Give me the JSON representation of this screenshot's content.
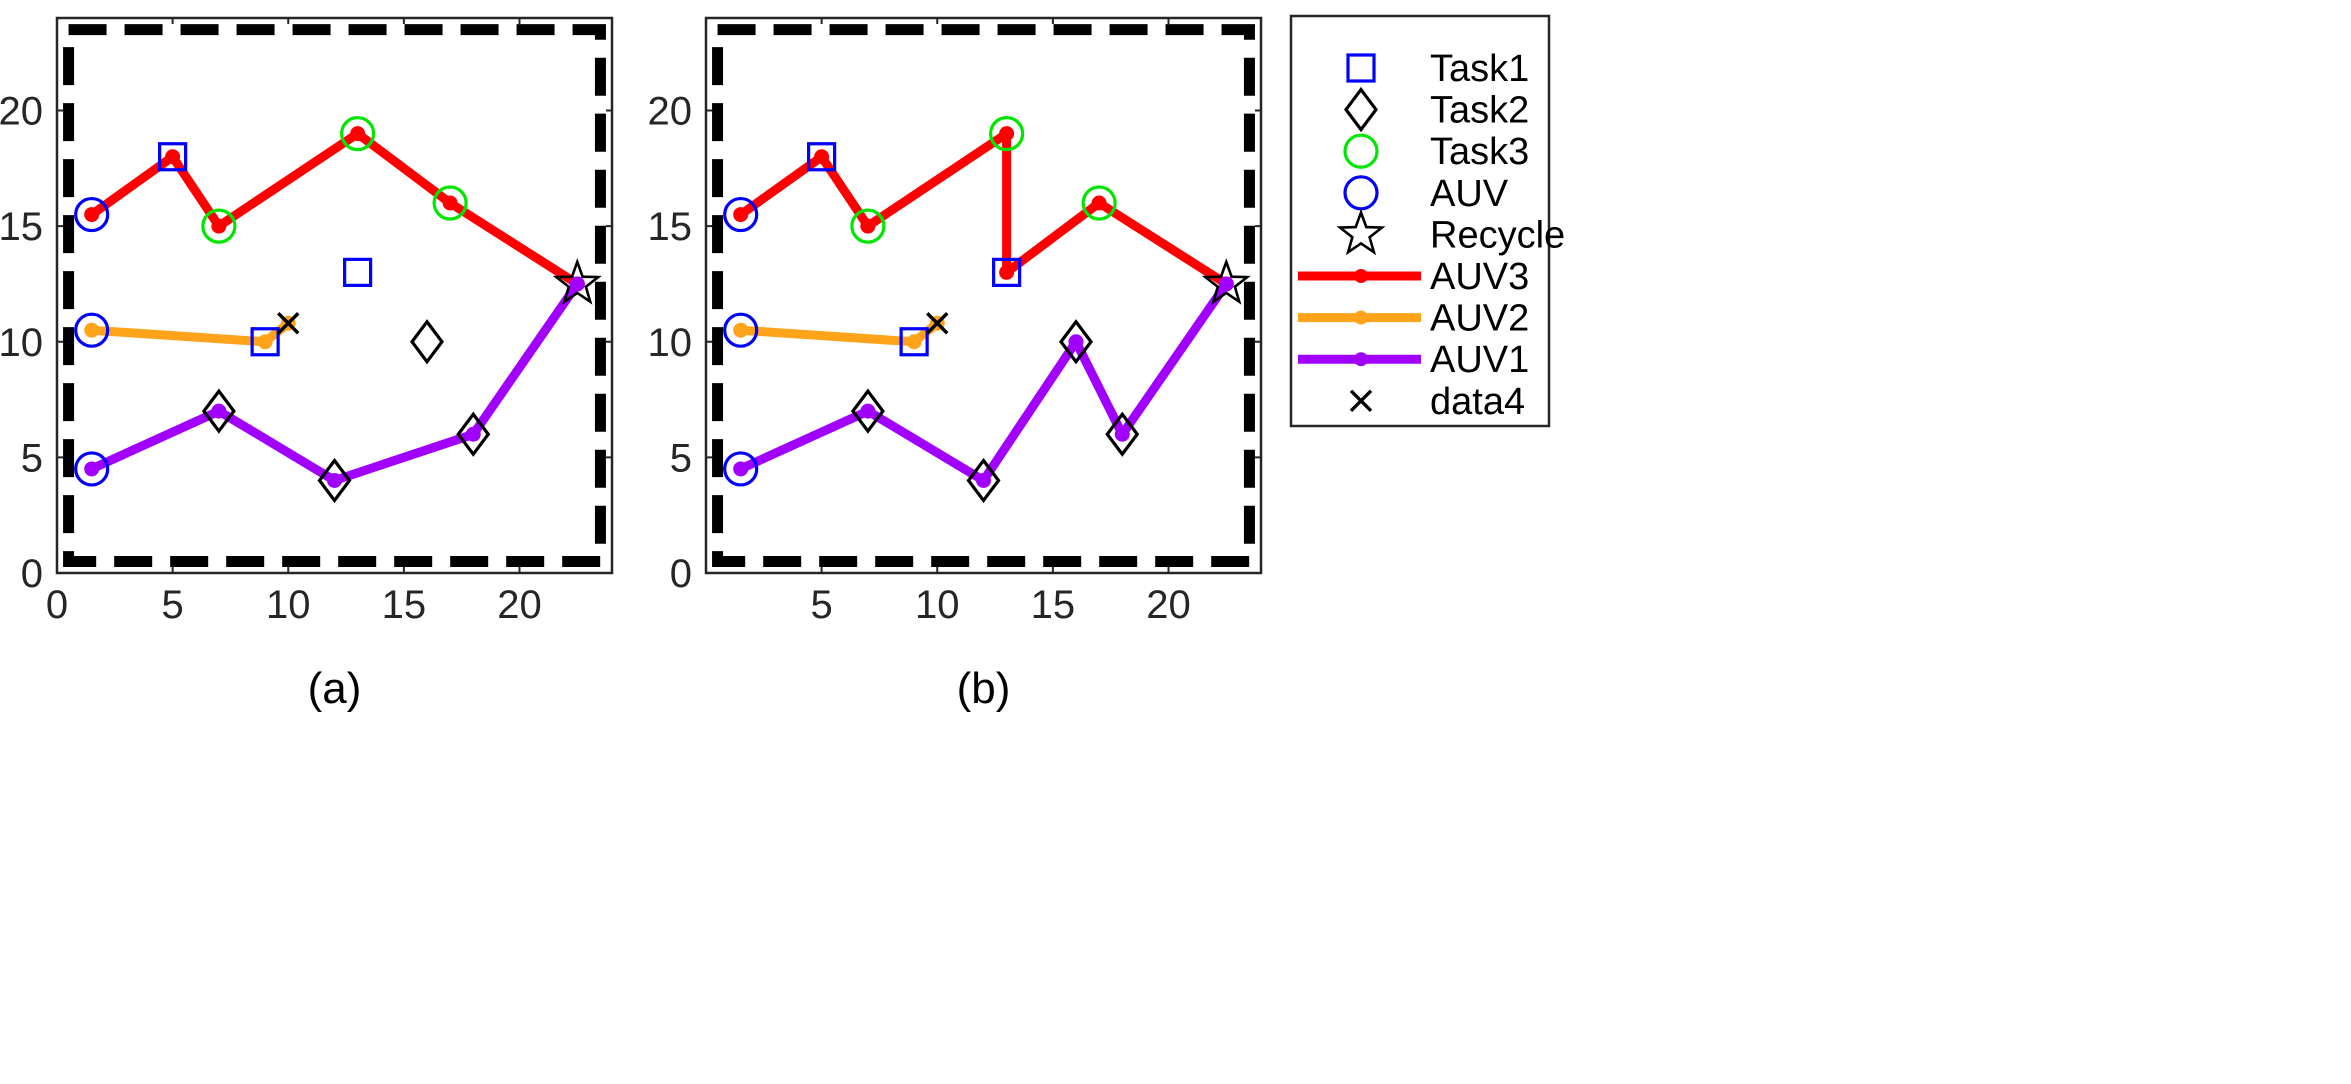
{
  "chart_data": [
    {
      "type": "line",
      "caption": "(a)",
      "xlim": [
        0,
        24
      ],
      "ylim": [
        0,
        24
      ],
      "xticks": [
        "0",
        "5",
        "10",
        "15",
        "20"
      ],
      "yticks": [
        "0",
        "5",
        "10",
        "15",
        "20"
      ],
      "boundary": {
        "x": [
          0.5,
          23.5
        ],
        "y": [
          0.5,
          23.5
        ],
        "style": "dashed"
      },
      "markers": {
        "Task1": [
          {
            "x": 5,
            "y": 18
          },
          {
            "x": 13,
            "y": 13
          },
          {
            "x": 9,
            "y": 10
          }
        ],
        "Task2": [
          {
            "x": 7,
            "y": 7
          },
          {
            "x": 12,
            "y": 4
          },
          {
            "x": 18,
            "y": 6
          },
          {
            "x": 16,
            "y": 10
          }
        ],
        "Task3": [
          {
            "x": 7,
            "y": 15
          },
          {
            "x": 13,
            "y": 19
          },
          {
            "x": 17,
            "y": 16
          }
        ],
        "AUV": [
          {
            "x": 1.5,
            "y": 15.5
          },
          {
            "x": 1.5,
            "y": 10.5
          },
          {
            "x": 1.5,
            "y": 4.5
          }
        ],
        "Recycle": [
          {
            "x": 22.5,
            "y": 12.5
          }
        ],
        "data4": [
          {
            "x": 10,
            "y": 10.8
          }
        ]
      },
      "series": [
        {
          "name": "AUV3",
          "color": "#ff0000",
          "x": [
            1.5,
            5,
            7,
            13,
            17,
            22.5
          ],
          "y": [
            15.5,
            18,
            15,
            19,
            16,
            12.5
          ]
        },
        {
          "name": "AUV2",
          "color": "#ffa31a",
          "x": [
            1.5,
            9,
            10
          ],
          "y": [
            10.5,
            10,
            10.8
          ]
        },
        {
          "name": "AUV1",
          "color": "#a100ff",
          "x": [
            1.5,
            7,
            12,
            18,
            22.5
          ],
          "y": [
            4.5,
            7,
            4,
            6,
            12.5
          ]
        }
      ]
    },
    {
      "type": "line",
      "caption": "(b)",
      "xlim": [
        0,
        24
      ],
      "ylim": [
        0,
        24
      ],
      "xticks": [
        "5",
        "10",
        "15",
        "20"
      ],
      "yticks": [
        "0",
        "5",
        "10",
        "15",
        "20"
      ],
      "boundary": {
        "x": [
          0.5,
          23.5
        ],
        "y": [
          0.5,
          23.5
        ],
        "style": "dashed"
      },
      "markers": {
        "Task1": [
          {
            "x": 5,
            "y": 18
          },
          {
            "x": 13,
            "y": 13
          },
          {
            "x": 9,
            "y": 10
          }
        ],
        "Task2": [
          {
            "x": 7,
            "y": 7
          },
          {
            "x": 12,
            "y": 4
          },
          {
            "x": 18,
            "y": 6
          },
          {
            "x": 16,
            "y": 10
          }
        ],
        "Task3": [
          {
            "x": 7,
            "y": 15
          },
          {
            "x": 13,
            "y": 19
          },
          {
            "x": 17,
            "y": 16
          }
        ],
        "AUV": [
          {
            "x": 1.5,
            "y": 15.5
          },
          {
            "x": 1.5,
            "y": 10.5
          },
          {
            "x": 1.5,
            "y": 4.5
          }
        ],
        "Recycle": [
          {
            "x": 22.5,
            "y": 12.5
          }
        ],
        "data4": [
          {
            "x": 10,
            "y": 10.8
          }
        ]
      },
      "series": [
        {
          "name": "AUV3",
          "color": "#ff0000",
          "x": [
            1.5,
            5,
            7,
            13,
            13,
            17,
            22.5
          ],
          "y": [
            15.5,
            18,
            15,
            19,
            13,
            16,
            12.5
          ]
        },
        {
          "name": "AUV2",
          "color": "#ffa31a",
          "x": [
            1.5,
            9,
            10
          ],
          "y": [
            10.5,
            10,
            10.8
          ]
        },
        {
          "name": "AUV1",
          "color": "#a100ff",
          "x": [
            1.5,
            7,
            12,
            16,
            18,
            22.5
          ],
          "y": [
            4.5,
            7,
            4,
            10,
            6,
            12.5
          ]
        }
      ]
    }
  ],
  "legend": {
    "placement": "right",
    "entries": [
      {
        "label": "Task1",
        "kind": "marker",
        "symbol": "square",
        "color": "#0000ff"
      },
      {
        "label": "Task2",
        "kind": "marker",
        "symbol": "diamond",
        "color": "#000000"
      },
      {
        "label": "Task3",
        "kind": "marker",
        "symbol": "circle",
        "color": "#00e600"
      },
      {
        "label": "AUV",
        "kind": "marker",
        "symbol": "circle",
        "color": "#0000ff"
      },
      {
        "label": "Recycle",
        "kind": "marker",
        "symbol": "star",
        "color": "#000000"
      },
      {
        "label": "AUV3",
        "kind": "line",
        "color": "#ff0000"
      },
      {
        "label": "AUV2",
        "kind": "line",
        "color": "#ffa31a"
      },
      {
        "label": "AUV1",
        "kind": "line",
        "color": "#a100ff"
      },
      {
        "label": "data4",
        "kind": "marker",
        "symbol": "x",
        "color": "#000000"
      }
    ]
  },
  "marker_colors": {
    "Task1": "#0000ff",
    "Task2": "#000000",
    "Task3": "#00e600",
    "AUV": "#0000ff",
    "Recycle": "#000000",
    "data4": "#000000"
  }
}
